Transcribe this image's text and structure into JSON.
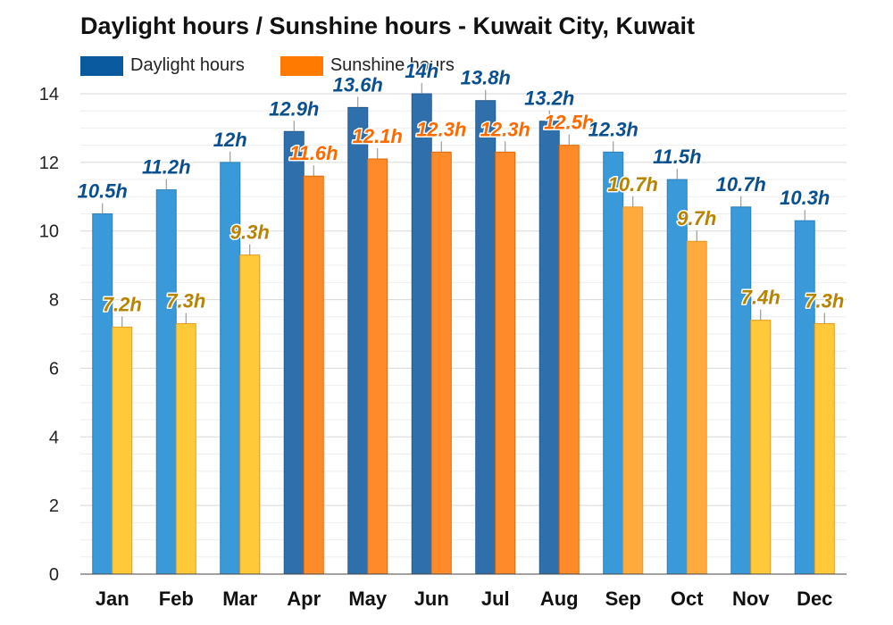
{
  "title": "Daylight hours / Sunshine hours - Kuwait City, Kuwait",
  "legend": [
    {
      "label": "Daylight hours",
      "color": "#0a5aa0"
    },
    {
      "label": "Sunshine hours",
      "color": "#ff7a00"
    }
  ],
  "chart_data": {
    "type": "bar",
    "title": "Daylight hours / Sunshine hours - Kuwait City, Kuwait",
    "categories": [
      "Jan",
      "Feb",
      "Mar",
      "Apr",
      "May",
      "Jun",
      "Jul",
      "Aug",
      "Sep",
      "Oct",
      "Nov",
      "Dec"
    ],
    "series": [
      {
        "name": "Daylight hours",
        "values": [
          10.5,
          11.2,
          12,
          12.9,
          13.6,
          14,
          13.8,
          13.2,
          12.3,
          11.5,
          10.7,
          10.3
        ],
        "labels": [
          "10.5h",
          "11.2h",
          "12h",
          "12.9h",
          "13.6h",
          "14h",
          "13.8h",
          "13.2h",
          "12.3h",
          "11.5h",
          "10.7h",
          "10.3h"
        ]
      },
      {
        "name": "Sunshine hours",
        "values": [
          7.2,
          7.3,
          9.3,
          11.6,
          12.1,
          12.3,
          12.3,
          12.5,
          10.7,
          9.7,
          7.4,
          7.3
        ],
        "labels": [
          "7.2h",
          "7.3h",
          "9.3h",
          "11.6h",
          "12.1h",
          "12.3h",
          "12.3h",
          "12.5h",
          "10.7h",
          "9.7h",
          "7.4h",
          "7.3h"
        ]
      }
    ],
    "ylim": [
      0,
      14
    ],
    "yticks": [
      "0",
      "2",
      "4",
      "6",
      "8",
      "10",
      "12",
      "14"
    ],
    "grid": true,
    "legend_position": "top-left"
  }
}
